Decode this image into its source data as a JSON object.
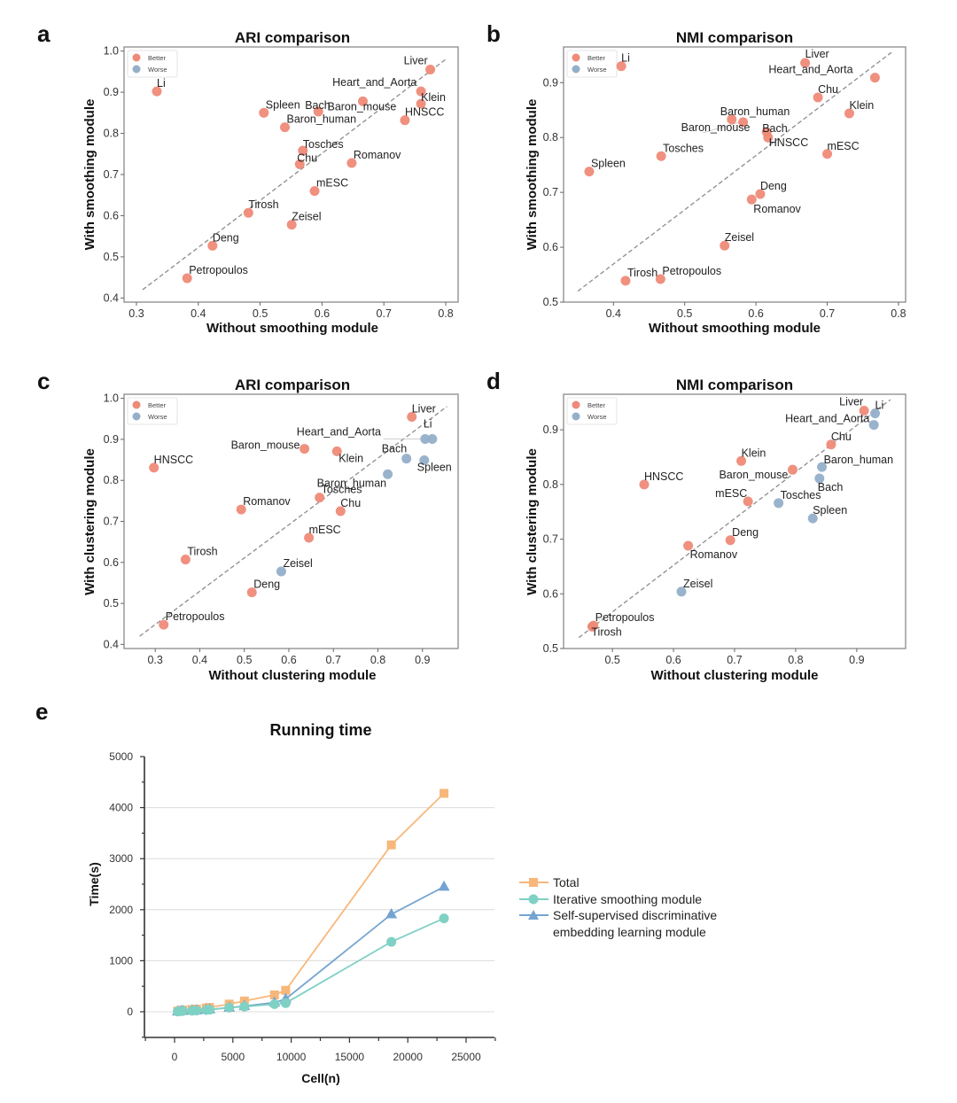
{
  "figure": {
    "colors": {
      "better": "#ef8a78",
      "worse": "#94afca",
      "worse_alt": "#97acbd",
      "diagonal": "#8c8c8c",
      "total": "#f7b77a",
      "smoothing": "#7fd1c4",
      "ssl": "#74a4d0",
      "grid": "#dcdcdc"
    }
  },
  "chart_data": [
    {
      "panel": "a",
      "type": "scatter",
      "title": "ARI comparison",
      "xlabel": "Without smoothing module",
      "ylabel": "With smoothing module",
      "xlim": [
        0.28,
        0.82
      ],
      "ylim": [
        0.39,
        1.01
      ],
      "xticks": [
        "0.3",
        "0.4",
        "0.5",
        "0.6",
        "0.7",
        "0.8"
      ],
      "yticks": [
        "0.4",
        "0.5",
        "0.6",
        "0.7",
        "0.8",
        "0.9",
        "1.0"
      ],
      "legend": {
        "position": "top-left",
        "entries": [
          "Better",
          "Worse"
        ]
      },
      "diagonal": [
        [
          0.31,
          0.42
        ],
        [
          0.8,
          0.98
        ]
      ],
      "points": [
        {
          "label": "Liver",
          "x": 0.775,
          "y": 0.955,
          "status": "Better"
        },
        {
          "label": "Li",
          "x": 0.333,
          "y": 0.902,
          "status": "Better"
        },
        {
          "label": "Heart_and_Aorta",
          "x": 0.76,
          "y": 0.902,
          "status": "Better"
        },
        {
          "label": "Klein",
          "x": 0.76,
          "y": 0.872,
          "status": "Better"
        },
        {
          "label": "HNSCC",
          "x": 0.734,
          "y": 0.832,
          "status": "Better"
        },
        {
          "label": "Baron_mouse",
          "x": 0.666,
          "y": 0.878,
          "status": "Better"
        },
        {
          "label": "Bach",
          "x": 0.594,
          "y": 0.853,
          "status": "Better"
        },
        {
          "label": "Spleen",
          "x": 0.506,
          "y": 0.85,
          "status": "Better"
        },
        {
          "label": "Baron_human",
          "x": 0.54,
          "y": 0.815,
          "status": "Better"
        },
        {
          "label": "Tosches",
          "x": 0.569,
          "y": 0.758,
          "status": "Better"
        },
        {
          "label": "Chu",
          "x": 0.564,
          "y": 0.725,
          "status": "Better"
        },
        {
          "label": "Romanov",
          "x": 0.648,
          "y": 0.728,
          "status": "Better"
        },
        {
          "label": "mESC",
          "x": 0.588,
          "y": 0.66,
          "status": "Better"
        },
        {
          "label": "Tirosh",
          "x": 0.481,
          "y": 0.607,
          "status": "Better"
        },
        {
          "label": "Zeisel",
          "x": 0.551,
          "y": 0.578,
          "status": "Better"
        },
        {
          "label": "Deng",
          "x": 0.423,
          "y": 0.527,
          "status": "Better"
        },
        {
          "label": "Petropoulos",
          "x": 0.382,
          "y": 0.448,
          "status": "Better"
        }
      ]
    },
    {
      "panel": "b",
      "type": "scatter",
      "title": "NMI comparison",
      "xlabel": "Without smoothing module",
      "ylabel": "With smoothing module",
      "xlim": [
        0.33,
        0.81
      ],
      "ylim": [
        0.5,
        0.965
      ],
      "xticks": [
        "0.4",
        "0.5",
        "0.6",
        "0.7",
        "0.8"
      ],
      "yticks": [
        "0.5",
        "0.6",
        "0.7",
        "0.8",
        "0.9"
      ],
      "legend": {
        "position": "top-left",
        "entries": [
          "Better",
          "Worse"
        ]
      },
      "diagonal": [
        [
          0.35,
          0.52
        ],
        [
          0.79,
          0.955
        ]
      ],
      "points": [
        {
          "label": "Li",
          "x": 0.411,
          "y": 0.93,
          "status": "Better"
        },
        {
          "label": "Liver",
          "x": 0.669,
          "y": 0.936,
          "status": "Better"
        },
        {
          "label": "Heart_and_Aorta",
          "x": 0.767,
          "y": 0.909,
          "status": "Better"
        },
        {
          "label": "Chu",
          "x": 0.687,
          "y": 0.873,
          "status": "Better"
        },
        {
          "label": "Klein",
          "x": 0.731,
          "y": 0.844,
          "status": "Better"
        },
        {
          "label": "Baron_human",
          "x": 0.566,
          "y": 0.833,
          "status": "Better"
        },
        {
          "label": "Bach",
          "x": 0.615,
          "y": 0.81,
          "status": "Better"
        },
        {
          "label": "Baron_mouse",
          "x": 0.582,
          "y": 0.828,
          "status": "Better"
        },
        {
          "label": "HNSCC",
          "x": 0.617,
          "y": 0.8,
          "status": "Better"
        },
        {
          "label": "mESC",
          "x": 0.7,
          "y": 0.77,
          "status": "Better"
        },
        {
          "label": "Tosches",
          "x": 0.467,
          "y": 0.766,
          "status": "Better"
        },
        {
          "label": "Spleen",
          "x": 0.366,
          "y": 0.738,
          "status": "Better"
        },
        {
          "label": "Deng",
          "x": 0.606,
          "y": 0.697,
          "status": "Better"
        },
        {
          "label": "Romanov",
          "x": 0.594,
          "y": 0.687,
          "status": "Better"
        },
        {
          "label": "Zeisel",
          "x": 0.556,
          "y": 0.603,
          "status": "Better"
        },
        {
          "label": "Tirosh",
          "x": 0.417,
          "y": 0.539,
          "status": "Better"
        },
        {
          "label": "Petropoulos",
          "x": 0.466,
          "y": 0.542,
          "status": "Better"
        }
      ]
    },
    {
      "panel": "c",
      "type": "scatter",
      "title": "ARI comparison",
      "xlabel": "Without clustering module",
      "ylabel": "With clustering module",
      "xlim": [
        0.23,
        0.98
      ],
      "ylim": [
        0.39,
        1.01
      ],
      "xticks": [
        "0.3",
        "0.4",
        "0.5",
        "0.6",
        "0.7",
        "0.8",
        "0.9"
      ],
      "yticks": [
        "0.4",
        "0.5",
        "0.6",
        "0.7",
        "0.8",
        "0.9",
        "1.0"
      ],
      "legend": {
        "position": "top-left",
        "entries": [
          "Better",
          "Worse"
        ]
      },
      "diagonal": [
        [
          0.265,
          0.42
        ],
        [
          0.955,
          0.98
        ]
      ],
      "points": [
        {
          "label": "Liver",
          "x": 0.876,
          "y": 0.955,
          "status": "Better"
        },
        {
          "label": "Li",
          "x": 0.922,
          "y": 0.901,
          "status": "Worse"
        },
        {
          "label": "Heart_and_Aorta",
          "x": 0.906,
          "y": 0.901,
          "status": "Worse"
        },
        {
          "label": "Baron_mouse",
          "x": 0.635,
          "y": 0.877,
          "status": "Better"
        },
        {
          "label": "Klein",
          "x": 0.708,
          "y": 0.871,
          "status": "Better"
        },
        {
          "label": "Bach",
          "x": 0.864,
          "y": 0.853,
          "status": "Worse"
        },
        {
          "label": "Spleen",
          "x": 0.904,
          "y": 0.849,
          "status": "Worse"
        },
        {
          "label": "HNSCC",
          "x": 0.297,
          "y": 0.831,
          "status": "Better"
        },
        {
          "label": "Baron_human",
          "x": 0.822,
          "y": 0.815,
          "status": "Worse"
        },
        {
          "label": "Tosches",
          "x": 0.669,
          "y": 0.758,
          "status": "Better"
        },
        {
          "label": "Romanov",
          "x": 0.493,
          "y": 0.729,
          "status": "Better"
        },
        {
          "label": "Chu",
          "x": 0.716,
          "y": 0.725,
          "status": "Better"
        },
        {
          "label": "mESC",
          "x": 0.645,
          "y": 0.66,
          "status": "Better"
        },
        {
          "label": "Tirosh",
          "x": 0.368,
          "y": 0.607,
          "status": "Better"
        },
        {
          "label": "Zeisel",
          "x": 0.583,
          "y": 0.578,
          "status": "Worse"
        },
        {
          "label": "Deng",
          "x": 0.517,
          "y": 0.527,
          "status": "Better"
        },
        {
          "label": "Petropoulos",
          "x": 0.319,
          "y": 0.448,
          "status": "Better"
        }
      ]
    },
    {
      "panel": "d",
      "type": "scatter",
      "title": "NMI comparison",
      "xlabel": "Without clustering module",
      "ylabel": "With clustering module",
      "xlim": [
        0.42,
        0.98
      ],
      "ylim": [
        0.5,
        0.965
      ],
      "xticks": [
        "0.5",
        "0.6",
        "0.7",
        "0.8",
        "0.9"
      ],
      "yticks": [
        "0.5",
        "0.6",
        "0.7",
        "0.8",
        "0.9"
      ],
      "legend": {
        "position": "top-left",
        "entries": [
          "Better",
          "Worse"
        ]
      },
      "diagonal": [
        [
          0.445,
          0.52
        ],
        [
          0.955,
          0.955
        ]
      ],
      "points": [
        {
          "label": "Liver",
          "x": 0.912,
          "y": 0.935,
          "status": "Better"
        },
        {
          "label": "Li",
          "x": 0.93,
          "y": 0.93,
          "status": "Worse"
        },
        {
          "label": "Heart_and_Aorta",
          "x": 0.928,
          "y": 0.909,
          "status": "Worse"
        },
        {
          "label": "Chu",
          "x": 0.858,
          "y": 0.873,
          "status": "Better"
        },
        {
          "label": "Klein",
          "x": 0.711,
          "y": 0.843,
          "status": "Better"
        },
        {
          "label": "Baron_human",
          "x": 0.843,
          "y": 0.832,
          "status": "Worse"
        },
        {
          "label": "Baron_mouse",
          "x": 0.795,
          "y": 0.827,
          "status": "Better"
        },
        {
          "label": "Bach",
          "x": 0.839,
          "y": 0.811,
          "status": "Worse"
        },
        {
          "label": "HNSCC",
          "x": 0.552,
          "y": 0.8,
          "status": "Better"
        },
        {
          "label": "mESC",
          "x": 0.722,
          "y": 0.769,
          "status": "Better"
        },
        {
          "label": "Tosches",
          "x": 0.772,
          "y": 0.766,
          "status": "Worse"
        },
        {
          "label": "Spleen",
          "x": 0.828,
          "y": 0.738,
          "status": "Worse"
        },
        {
          "label": "Deng",
          "x": 0.693,
          "y": 0.698,
          "status": "Better"
        },
        {
          "label": "Romanov",
          "x": 0.624,
          "y": 0.688,
          "status": "Better"
        },
        {
          "label": "Zeisel",
          "x": 0.613,
          "y": 0.604,
          "status": "Worse"
        },
        {
          "label": "Petropoulos",
          "x": 0.469,
          "y": 0.542,
          "status": "Better"
        },
        {
          "label": "Tirosh",
          "x": 0.467,
          "y": 0.54,
          "status": "Better"
        }
      ]
    },
    {
      "panel": "e",
      "type": "line",
      "title": "Running time",
      "xlabel": "Cell(n)",
      "ylabel": "Time(s)",
      "xlim": [
        -2500,
        27500
      ],
      "ylim": [
        -500,
        5000
      ],
      "xticks": [
        "0",
        "5000",
        "10000",
        "15000",
        "20000",
        "25000"
      ],
      "yticks": [
        "0",
        "1000",
        "2000",
        "3000",
        "4000",
        "5000"
      ],
      "grid": "horizontal",
      "legend": {
        "position": "right"
      },
      "x": [
        268,
        561,
        701,
        1500,
        1886,
        2717,
        3005,
        4686,
        5989,
        8569,
        9530,
        18590,
        23104
      ],
      "series": [
        {
          "name": "Total",
          "marker": "square",
          "values": [
            12,
            28,
            33,
            45,
            52,
            75,
            85,
            150,
            210,
            330,
            420,
            3270,
            4280
          ]
        },
        {
          "name": "Iterative smoothing module",
          "marker": "circle",
          "values": [
            5,
            12,
            15,
            20,
            24,
            35,
            40,
            80,
            100,
            150,
            170,
            1370,
            1830
          ]
        },
        {
          "name": "Self-supervised discriminative embedding learning module",
          "marker": "triangle",
          "values": [
            7,
            15,
            18,
            25,
            28,
            40,
            45,
            80,
            110,
            180,
            250,
            1910,
            2450
          ]
        }
      ]
    }
  ],
  "panel_letters": [
    "a",
    "b",
    "c",
    "d",
    "e"
  ],
  "legend_e": {
    "total": "Total",
    "smoothing": "Iterative smoothing module",
    "ssl_line1": "Self-supervised discriminative",
    "ssl_line2": "embedding learning module"
  }
}
